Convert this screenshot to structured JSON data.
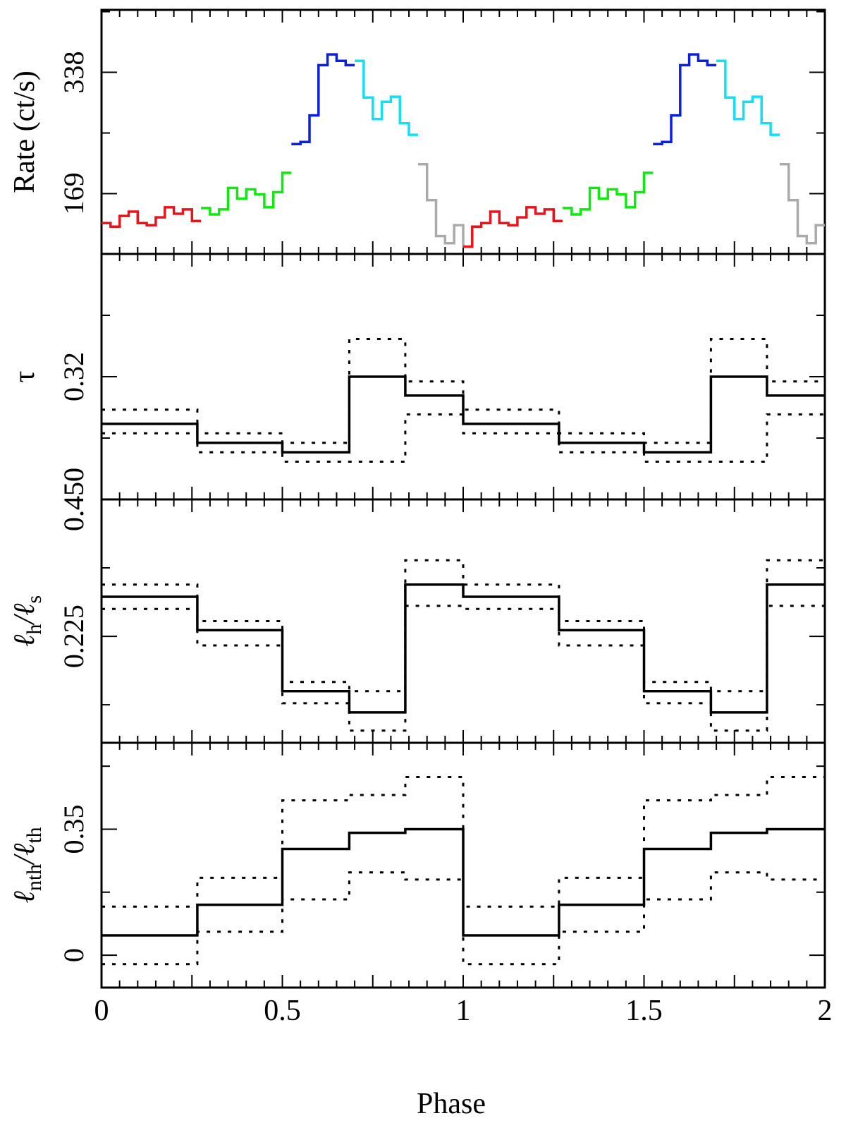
{
  "figure": {
    "xlabel": "Phase",
    "xticks": [
      "0",
      "0.5",
      "1",
      "1.5",
      "2"
    ],
    "xlim": [
      0,
      2
    ]
  },
  "chart_data": [
    {
      "type": "line",
      "panel": "rate",
      "ylabel": "Rate (ct/s)",
      "ylim": [
        85,
        425
      ],
      "yticks": [
        169,
        338
      ],
      "ytick_labels": [
        "169",
        "338"
      ],
      "step": true,
      "segments": [
        {
          "color": "#e8141c",
          "edges": [
            0,
            0.025,
            0.05,
            0.075,
            0.1,
            0.125,
            0.15,
            0.175,
            0.2,
            0.225,
            0.25,
            0.275
          ],
          "values": [
            128,
            123,
            138,
            144,
            128,
            125,
            136,
            150,
            141,
            147,
            131
          ]
        },
        {
          "color": "#11e811",
          "edges": [
            0.275,
            0.3,
            0.325,
            0.35,
            0.375,
            0.4,
            0.425,
            0.45,
            0.475,
            0.5,
            0.525
          ],
          "values": [
            149,
            140,
            147,
            177,
            162,
            175,
            168,
            150,
            171,
            198
          ]
        },
        {
          "color": "#0b1fe0",
          "edges": [
            0.525,
            0.55,
            0.575,
            0.6,
            0.625,
            0.65,
            0.675,
            0.7
          ],
          "values": [
            238,
            241,
            278,
            348,
            363,
            354,
            348
          ]
        },
        {
          "color": "#10e0f0",
          "edges": [
            0.7,
            0.725,
            0.75,
            0.775,
            0.8,
            0.825,
            0.85,
            0.875
          ],
          "values": [
            354,
            303,
            273,
            297,
            304,
            267,
            251
          ]
        },
        {
          "color": "#aaaaaa",
          "edges": [
            0.875,
            0.9,
            0.925,
            0.95,
            0.975,
            1.0,
            1.025
          ],
          "values": [
            210,
            160,
            110,
            100,
            125,
            95
          ]
        },
        {
          "color": "#e8141c",
          "edges": [
            1.0,
            1.025,
            1.05,
            1.075,
            1.1,
            1.125,
            1.15,
            1.175,
            1.2,
            1.225,
            1.25,
            1.275
          ],
          "values": [
            95,
            123,
            128,
            144,
            128,
            125,
            136,
            150,
            141,
            147,
            131
          ]
        },
        {
          "color": "#11e811",
          "edges": [
            1.275,
            1.3,
            1.325,
            1.35,
            1.375,
            1.4,
            1.425,
            1.45,
            1.475,
            1.5,
            1.525
          ],
          "values": [
            149,
            140,
            147,
            177,
            162,
            175,
            168,
            150,
            171,
            198
          ]
        },
        {
          "color": "#0b1fe0",
          "edges": [
            1.525,
            1.55,
            1.575,
            1.6,
            1.625,
            1.65,
            1.675,
            1.7
          ],
          "values": [
            238,
            241,
            278,
            348,
            363,
            354,
            348
          ]
        },
        {
          "color": "#10e0f0",
          "edges": [
            1.7,
            1.725,
            1.75,
            1.775,
            1.8,
            1.825,
            1.85,
            1.875
          ],
          "values": [
            354,
            303,
            273,
            297,
            304,
            267,
            251
          ]
        },
        {
          "color": "#aaaaaa",
          "edges": [
            1.875,
            1.9,
            1.925,
            1.95,
            1.975,
            2.0
          ],
          "values": [
            210,
            160,
            110,
            100,
            125
          ]
        }
      ]
    },
    {
      "type": "line",
      "panel": "tau",
      "ylabel": "τ",
      "ylim": [
        0.45,
        0.19
      ],
      "yticks": [
        0.32,
        0.45
      ],
      "ytick_labels": [
        "0.32",
        "0.450"
      ],
      "step": true,
      "edges": [
        0,
        0.265,
        0.5,
        0.685,
        0.84,
        1.0,
        1.265,
        1.5,
        1.685,
        1.84,
        2.0
      ],
      "series": [
        {
          "style": "solid",
          "values": [
            0.37,
            0.39,
            0.4,
            0.32,
            0.34,
            0.37,
            0.39,
            0.4,
            0.32,
            0.34
          ]
        },
        {
          "style": "dotted",
          "values": [
            0.355,
            0.38,
            0.39,
            0.28,
            0.325,
            0.355,
            0.38,
            0.39,
            0.28,
            0.325
          ]
        },
        {
          "style": "dotted",
          "values": [
            0.38,
            0.4,
            0.41,
            0.41,
            0.36,
            0.38,
            0.4,
            0.41,
            0.41,
            0.36
          ]
        }
      ]
    },
    {
      "type": "line",
      "panel": "lh_ls",
      "ylabel": "ℓh/ℓs",
      "ylim": [
        0.05,
        0.45
      ],
      "yticks": [
        0.225,
        0.45
      ],
      "ytick_labels": [
        "0.225",
        "0.450"
      ],
      "step": true,
      "edges": [
        0,
        0.265,
        0.5,
        0.685,
        0.84,
        1.0,
        1.265,
        1.5,
        1.685,
        1.84,
        2.0
      ],
      "series": [
        {
          "style": "solid",
          "values": [
            0.29,
            0.235,
            0.135,
            0.1,
            0.31,
            0.29,
            0.235,
            0.135,
            0.1,
            0.31
          ]
        },
        {
          "style": "dotted",
          "values": [
            0.31,
            0.25,
            0.15,
            0.135,
            0.35,
            0.31,
            0.25,
            0.15,
            0.135,
            0.35
          ]
        },
        {
          "style": "dotted",
          "values": [
            0.27,
            0.21,
            0.115,
            0.07,
            0.275,
            0.27,
            0.21,
            0.115,
            0.07,
            0.275
          ]
        }
      ]
    },
    {
      "type": "line",
      "panel": "lnth_lth",
      "ylabel": "ℓnth/ℓth",
      "ylim": [
        -0.09,
        0.59
      ],
      "yticks": [
        0,
        0.35
      ],
      "ytick_labels": [
        "0",
        "0.35"
      ],
      "step": true,
      "edges": [
        0,
        0.265,
        0.5,
        0.685,
        0.84,
        1.0,
        1.265,
        1.5,
        1.685,
        1.84,
        2.0
      ],
      "series": [
        {
          "style": "solid",
          "values": [
            0.055,
            0.14,
            0.295,
            0.34,
            0.35,
            0.055,
            0.14,
            0.295,
            0.34,
            0.35
          ]
        },
        {
          "style": "dotted",
          "values": [
            0.135,
            0.215,
            0.43,
            0.445,
            0.495,
            0.135,
            0.215,
            0.43,
            0.445,
            0.495
          ]
        },
        {
          "style": "dotted",
          "values": [
            -0.025,
            0.065,
            0.155,
            0.23,
            0.21,
            -0.025,
            0.065,
            0.155,
            0.23,
            0.21
          ]
        }
      ]
    }
  ]
}
